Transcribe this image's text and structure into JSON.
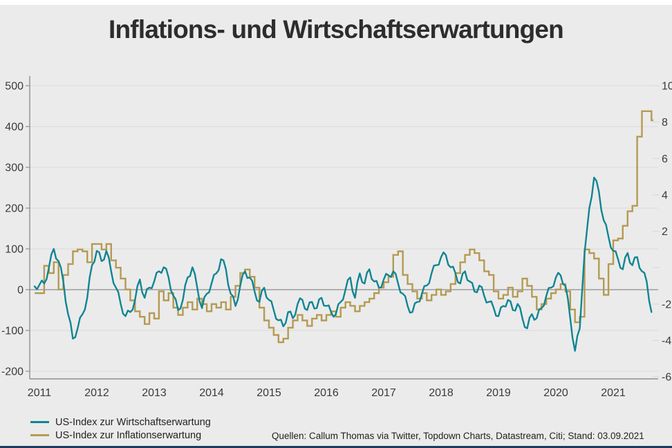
{
  "title": "Inflations- und Wirtschaftserwartungen",
  "source_note": "Quellen: Callum Thomas via Twitter, Topdown Charts, Datastream, Citi; Stand: 03.09.2021",
  "colors": {
    "background": "#ebebeb",
    "top_strip": "#ffffff",
    "bottom_bar": "#1d3a5e",
    "title_text": "#2d2d2d",
    "axis_text": "#3a3a3a",
    "gridline": "#d9d9d9",
    "zero_line": "#9b9b9b",
    "axis_line": "#8f8f8f",
    "series_economy": "#0f8593",
    "series_inflation": "#b49a52"
  },
  "legend": {
    "items": [
      {
        "label": "US-Index zur Wirtschaftserwartung",
        "color": "#0f8593"
      },
      {
        "label": "US-Index zur Inflationserwartung",
        "color": "#b49a52"
      }
    ]
  },
  "chart_data": {
    "type": "line",
    "title": "Inflations- und Wirtschaftserwartungen",
    "x_axis": {
      "year_labels": [
        "2011",
        "2012",
        "2013",
        "2014",
        "2015",
        "2016",
        "2017",
        "2018",
        "2019",
        "2020",
        "2021"
      ],
      "start_decimal_year": 2010.9167,
      "end_decimal_year": 2021.6667,
      "cadence": "monthly"
    },
    "left_axis": {
      "tick_labels": [
        "500",
        "400",
        "300",
        "200",
        "100",
        "0",
        "-100",
        "-200"
      ],
      "tick_values": [
        500,
        400,
        300,
        200,
        100,
        0,
        -100,
        -200
      ],
      "ylim": [
        -200,
        500
      ]
    },
    "right_axis": {
      "tick_labels": [
        "10",
        "8",
        "6",
        "4",
        "2",
        "",
        "-2",
        "-4",
        "-6"
      ],
      "tick_values": [
        10,
        8,
        6,
        4,
        2,
        0,
        -2,
        -4,
        -6
      ],
      "ylim": [
        -6,
        10
      ],
      "note_zero_label_cut_off": true
    },
    "grid": true,
    "legend_position": "bottom-left",
    "series": [
      {
        "name": "US-Index zur Wirtschaftserwartung",
        "axis": "left",
        "style": "jagged-line",
        "color": "#0f8593",
        "values": [
          8,
          12,
          15,
          55,
          100,
          70,
          20,
          -60,
          -120,
          -95,
          -60,
          -20,
          60,
          95,
          70,
          95,
          45,
          5,
          -35,
          -65,
          -55,
          -25,
          25,
          -20,
          5,
          20,
          45,
          55,
          30,
          -15,
          -50,
          -25,
          30,
          55,
          5,
          -45,
          -10,
          15,
          40,
          75,
          50,
          -10,
          -40,
          10,
          45,
          30,
          -5,
          -30,
          5,
          -25,
          -50,
          -75,
          -90,
          -55,
          -70,
          -35,
          -25,
          -50,
          -30,
          -45,
          -20,
          -40,
          -55,
          -60,
          -30,
          0,
          30,
          -20,
          40,
          15,
          50,
          20,
          5,
          25,
          35,
          45,
          15,
          -10,
          -40,
          -55,
          -30,
          -10,
          10,
          40,
          60,
          80,
          85,
          55,
          40,
          15,
          45,
          20,
          -5,
          10,
          -15,
          -30,
          -45,
          -65,
          -40,
          -25,
          -50,
          -35,
          -70,
          -95,
          -60,
          -70,
          -45,
          -15,
          5,
          30,
          35,
          10,
          -70,
          -150,
          -95,
          90,
          200,
          275,
          240,
          170,
          130,
          95,
          75,
          50,
          90,
          60,
          80,
          45,
          20,
          -55
        ]
      },
      {
        "name": "US-Index zur Inflationserwartung",
        "axis": "right",
        "style": "step",
        "color": "#b49a52",
        "values": [
          -1.4,
          -1.4,
          0.1,
          -0.3,
          0.3,
          -1.2,
          -0.4,
          0.2,
          0.9,
          1.0,
          0.9,
          0.3,
          1.3,
          1.3,
          1.0,
          1.3,
          0.4,
          0.0,
          -0.6,
          -1.2,
          -1.8,
          -2.4,
          -2.7,
          -3.1,
          -2.5,
          -2.8,
          -1.3,
          -1.8,
          -1.4,
          -2.2,
          -2.6,
          -2.2,
          -1.9,
          -2.3,
          -1.7,
          -2.0,
          -2.4,
          -2.0,
          -2.2,
          -1.9,
          -2.3,
          -1.6,
          -1.0,
          -0.3,
          -0.1,
          -0.5,
          -1.1,
          -2.2,
          -2.9,
          -3.3,
          -3.7,
          -4.1,
          -3.9,
          -3.3,
          -2.9,
          -2.6,
          -2.9,
          -3.2,
          -2.8,
          -2.6,
          -2.9,
          -2.6,
          -2.4,
          -2.7,
          -2.2,
          -1.9,
          -2.1,
          -2.4,
          -2.1,
          -1.9,
          -1.7,
          -1.4,
          -1.1,
          -0.8,
          -0.5,
          0.7,
          0.9,
          -0.4,
          -0.9,
          -1.3,
          -1.7,
          -1.4,
          -1.8,
          -1.5,
          -1.2,
          -1.5,
          -1.3,
          -0.9,
          -0.3,
          0.3,
          0.7,
          1.0,
          0.8,
          0.4,
          -0.2,
          -0.4,
          -1.3,
          -1.7,
          -1.5,
          -1.1,
          -1.6,
          -1.3,
          -0.6,
          -1.0,
          -1.6,
          -2.3,
          -2.0,
          -1.7,
          -1.4,
          -1.2,
          -0.9,
          -1.3,
          -2.3,
          -3.0,
          -2.7,
          1.0,
          0.8,
          0.5,
          -0.6,
          -1.5,
          0.2,
          1.5,
          1.6,
          2.3,
          3.1,
          3.4,
          7.2,
          8.6,
          8.6,
          8.1
        ]
      }
    ]
  }
}
